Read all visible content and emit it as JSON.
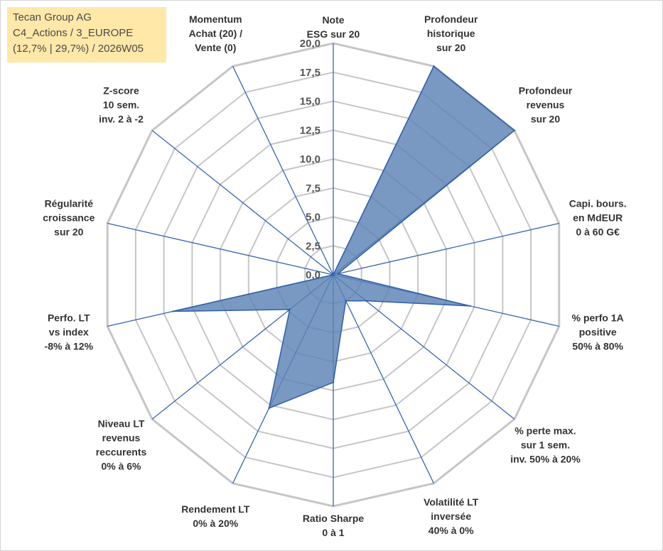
{
  "info": {
    "company": "Tecan Group AG",
    "portfolio": "C4_Actions / 3_EUROPE",
    "stats": "(12,7% | 29,7%) / 2026W05"
  },
  "colors": {
    "fill": "#5b82b5",
    "stroke": "#2e5ea8",
    "spoke": "#3766b5",
    "grid": "#c6c6c6",
    "info_bg": "#ffe8a8"
  },
  "chart_data": {
    "type": "radar",
    "r_range": [
      0,
      20
    ],
    "ticks": [
      "0,0",
      "2,5",
      "5,0",
      "7,5",
      "10,0",
      "12,5",
      "15,0",
      "17,5",
      "20,0"
    ],
    "axes": [
      {
        "label": [
          "Note",
          "ESG sur 20"
        ],
        "value": 0
      },
      {
        "label": [
          "Profondeur",
          "historique",
          "sur 20"
        ],
        "value": 20
      },
      {
        "label": [
          "Profondeur",
          "revenus",
          "sur 20"
        ],
        "value": 20
      },
      {
        "label": [
          "Capi. bours.",
          "en MdEUR",
          "0 à 60 G€"
        ],
        "value": 0.4
      },
      {
        "label": [
          "% perfo 1A",
          "positive",
          "50% à 80%"
        ],
        "value": 12.1
      },
      {
        "label": [
          "% perte max.",
          "sur 1 sem.",
          "inv. 50% à 20%"
        ],
        "value": 3.6
      },
      {
        "label": [
          "Volatilité LT",
          "inversée",
          "40% à 0%"
        ],
        "value": 2.5
      },
      {
        "label": [
          "Ratio Sharpe",
          "0 à 1"
        ],
        "value": 9.3
      },
      {
        "label": [
          "Rendement LT",
          "0% à 20%"
        ],
        "value": 12.8
      },
      {
        "label": [
          "Niveau LT",
          "revenus",
          "reccurents",
          "0% à 6%"
        ],
        "value": 4.8
      },
      {
        "label": [
          "Perfo. LT",
          "vs index",
          "-8% à 12%"
        ],
        "value": 14.2
      },
      {
        "label": [
          "Régularité",
          "croissance",
          "sur 20"
        ],
        "value": 0
      },
      {
        "label": [
          "Z-score",
          "10 sem.",
          "inv. 2 à -2"
        ],
        "value": 0
      },
      {
        "label": [
          "Momentum",
          "Achat (20) /",
          "Vente (0)"
        ],
        "value": 0
      }
    ]
  }
}
